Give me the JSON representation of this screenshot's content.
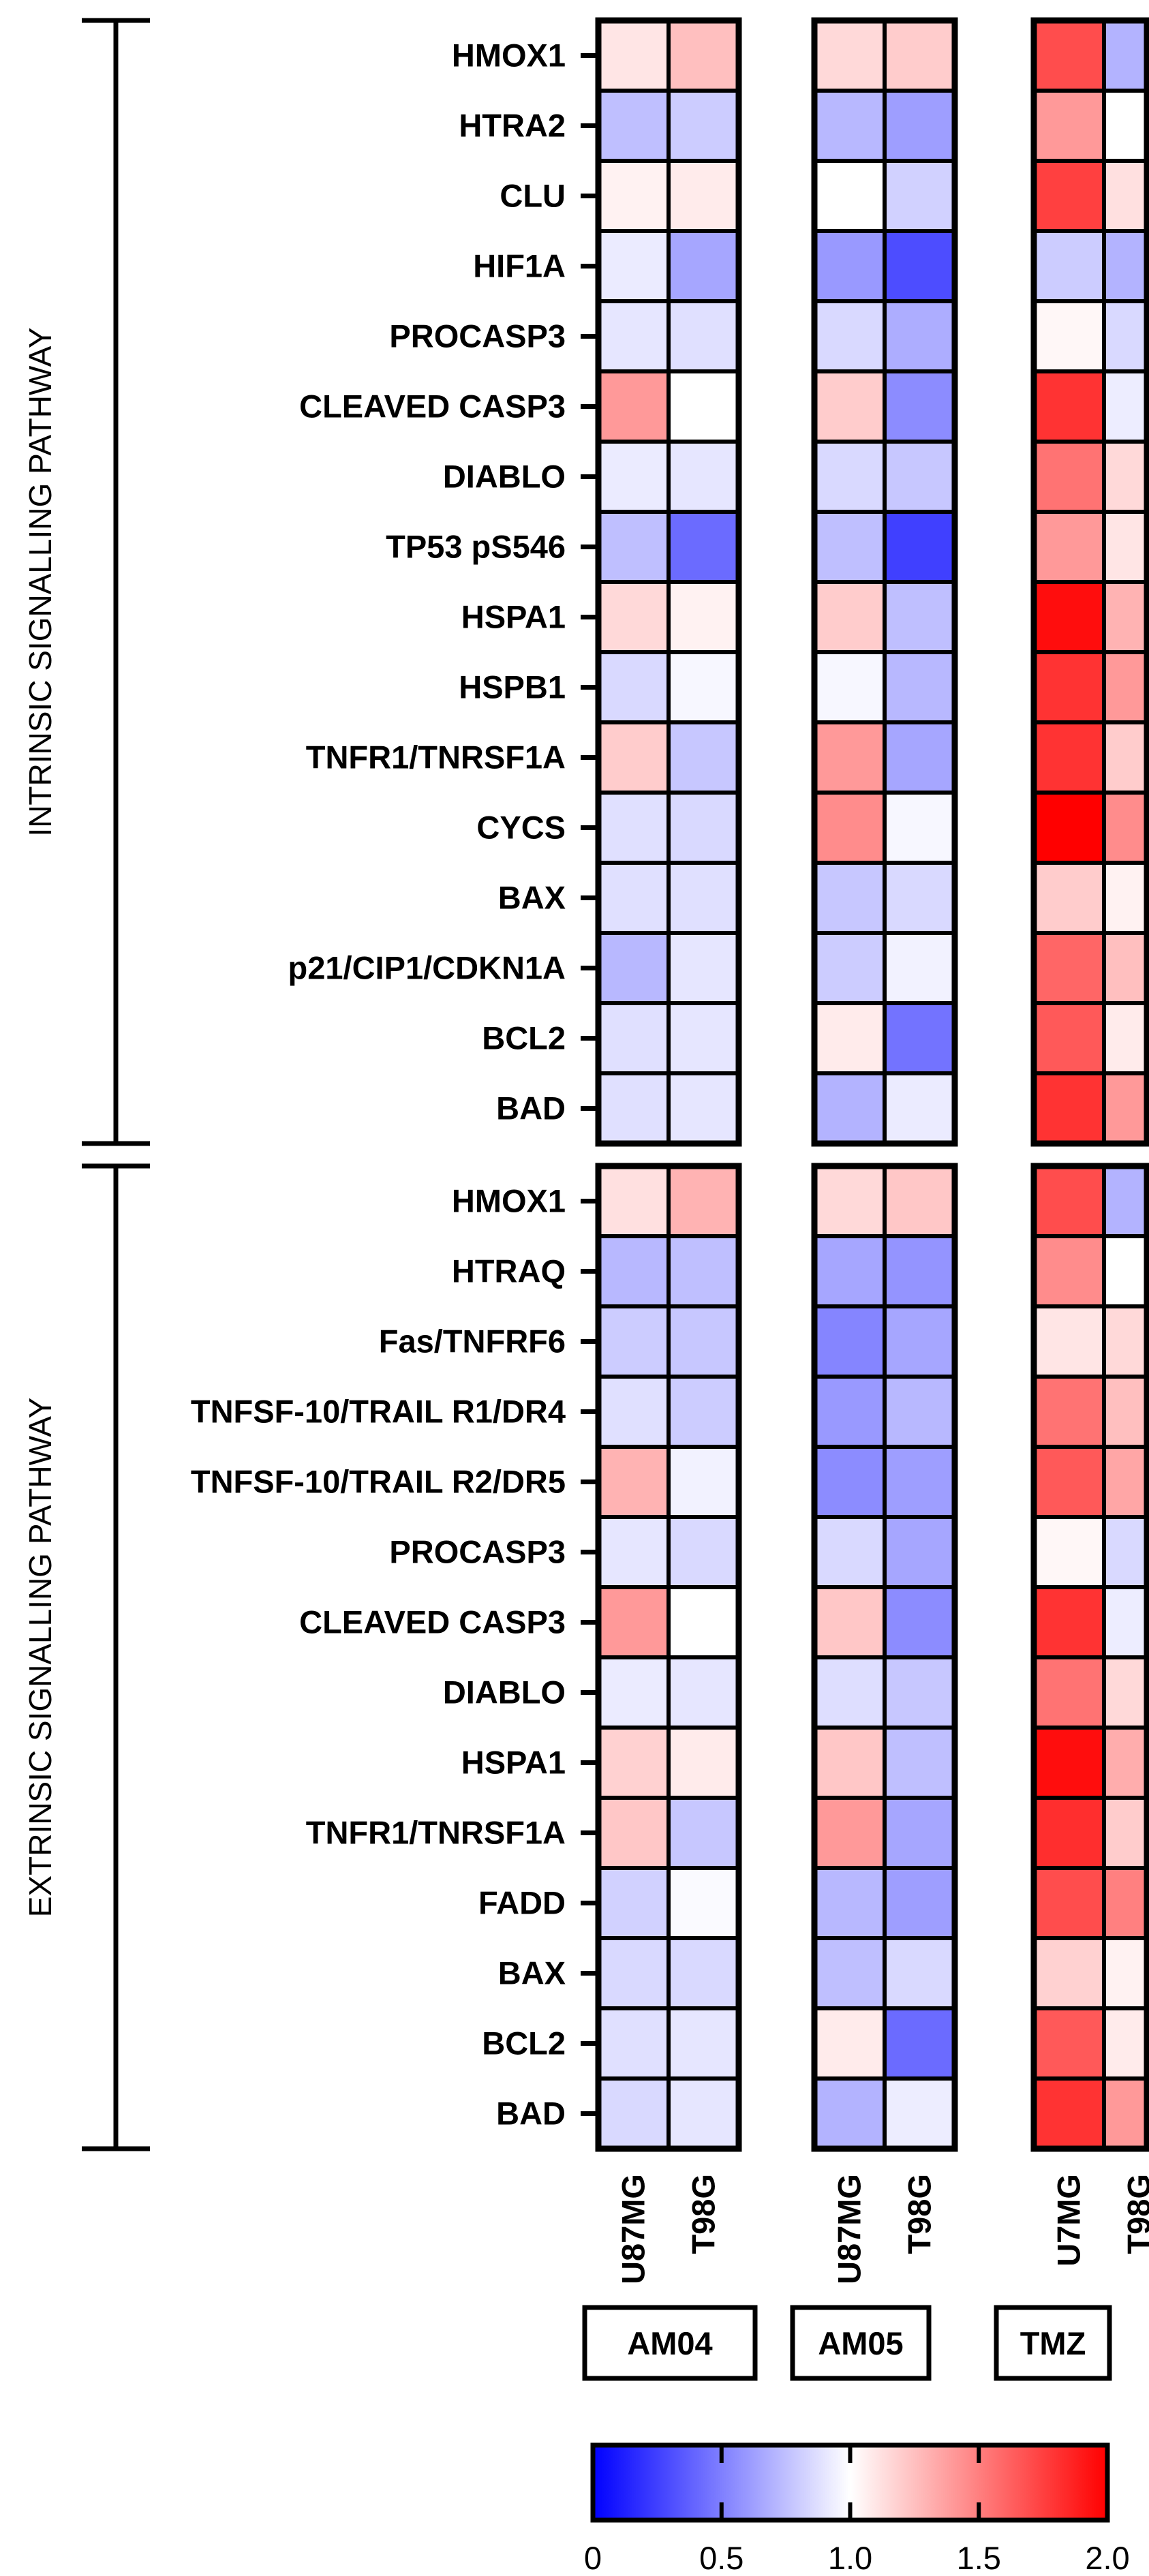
{
  "chart_data": {
    "type": "heatmap",
    "color_scale": {
      "min": 0,
      "mid": 1.0,
      "max": 2.0,
      "low_color": "#0000ff",
      "mid_color": "#ffffff",
      "high_color": "#ff0000",
      "ticks": [
        "0",
        "0.5",
        "1.0",
        "1.5",
        "2.0"
      ]
    },
    "groups": [
      {
        "label": "AM04",
        "columns": [
          "U87MG",
          "T98G"
        ]
      },
      {
        "label": "AM05",
        "columns": [
          "U87MG",
          "T98G"
        ]
      },
      {
        "label": "TMZ",
        "columns": [
          "U7MG",
          "T98G"
        ]
      }
    ],
    "pathways": [
      {
        "label": "INTRINSIC SIGNALLING PATHWAY",
        "rows": [
          {
            "name": "HMOX1",
            "values": [
              1.1,
              1.25,
              1.15,
              1.2,
              1.7,
              0.7
            ]
          },
          {
            "name": "HTRA2",
            "values": [
              0.75,
              0.8,
              0.72,
              0.62,
              1.4,
              1.0
            ]
          },
          {
            "name": "CLU",
            "values": [
              1.05,
              1.08,
              1.0,
              0.82,
              1.75,
              1.12
            ]
          },
          {
            "name": "HIF1A",
            "values": [
              0.92,
              0.65,
              0.6,
              0.3,
              0.8,
              0.7
            ]
          },
          {
            "name": "PROCASP3",
            "values": [
              0.9,
              0.88,
              0.85,
              0.68,
              1.03,
              0.85
            ]
          },
          {
            "name": "CLEAVED CASP3",
            "values": [
              1.4,
              1.0,
              1.2,
              0.55,
              1.8,
              0.93
            ]
          },
          {
            "name": "DIABLO",
            "values": [
              0.92,
              0.9,
              0.85,
              0.78,
              1.55,
              1.15
            ]
          },
          {
            "name": "TP53 pS546",
            "values": [
              0.75,
              0.42,
              0.75,
              0.25,
              1.4,
              1.1
            ]
          },
          {
            "name": "HSPA1",
            "values": [
              1.15,
              1.05,
              1.2,
              0.75,
              1.95,
              1.3
            ]
          },
          {
            "name": "HSPB1",
            "values": [
              0.85,
              0.97,
              0.97,
              0.72,
              1.8,
              1.4
            ]
          },
          {
            "name": "TNFR1/TNRSF1A",
            "values": [
              1.2,
              0.78,
              1.4,
              0.65,
              1.8,
              1.2
            ]
          },
          {
            "name": "CYCS",
            "values": [
              0.88,
              0.85,
              1.45,
              0.97,
              2.0,
              1.45
            ]
          },
          {
            "name": "BAX",
            "values": [
              0.88,
              0.88,
              0.78,
              0.85,
              1.2,
              1.05
            ]
          },
          {
            "name": "p21/CIP1/CDKN1A",
            "values": [
              0.72,
              0.9,
              0.8,
              0.95,
              1.6,
              1.25
            ]
          },
          {
            "name": "BCL2",
            "values": [
              0.88,
              0.9,
              1.08,
              0.45,
              1.65,
              1.08
            ]
          },
          {
            "name": "BAD",
            "values": [
              0.88,
              0.9,
              0.7,
              0.92,
              1.8,
              1.4
            ]
          }
        ]
      },
      {
        "label": "EXTRINSIC SIGNALLING PATHWAY",
        "rows": [
          {
            "name": "HMOX1",
            "values": [
              1.12,
              1.3,
              1.15,
              1.22,
              1.7,
              0.7
            ]
          },
          {
            "name": "HTRAQ",
            "values": [
              0.72,
              0.75,
              0.65,
              0.58,
              1.45,
              1.0
            ]
          },
          {
            "name": "Fas/TNFRF6",
            "values": [
              0.8,
              0.78,
              0.52,
              0.65,
              1.1,
              1.15
            ]
          },
          {
            "name": "TNFSF-10/TRAIL R1/DR4",
            "values": [
              0.88,
              0.8,
              0.6,
              0.72,
              1.55,
              1.25
            ]
          },
          {
            "name": "TNFSF-10/TRAIL R2/DR5",
            "values": [
              1.3,
              0.95,
              0.55,
              0.62,
              1.65,
              1.35
            ]
          },
          {
            "name": "PROCASP3",
            "values": [
              0.9,
              0.85,
              0.85,
              0.65,
              1.03,
              0.85
            ]
          },
          {
            "name": "CLEAVED CASP3",
            "values": [
              1.4,
              1.0,
              1.22,
              0.55,
              1.8,
              0.93
            ]
          },
          {
            "name": "DIABLO",
            "values": [
              0.92,
              0.9,
              0.87,
              0.78,
              1.55,
              1.15
            ]
          },
          {
            "name": "HSPA1",
            "values": [
              1.18,
              1.08,
              1.22,
              0.75,
              1.95,
              1.32
            ]
          },
          {
            "name": "TNFR1/TNRSF1A",
            "values": [
              1.22,
              0.78,
              1.4,
              0.65,
              1.82,
              1.2
            ]
          },
          {
            "name": "FADD",
            "values": [
              0.82,
              0.98,
              0.72,
              0.62,
              1.7,
              1.5
            ]
          },
          {
            "name": "BAX",
            "values": [
              0.85,
              0.85,
              0.75,
              0.85,
              1.18,
              1.05
            ]
          },
          {
            "name": "BCL2",
            "values": [
              0.88,
              0.9,
              1.08,
              0.42,
              1.65,
              1.08
            ]
          },
          {
            "name": "BAD",
            "values": [
              0.85,
              0.9,
              0.7,
              0.93,
              1.8,
              1.4
            ]
          }
        ]
      }
    ]
  }
}
